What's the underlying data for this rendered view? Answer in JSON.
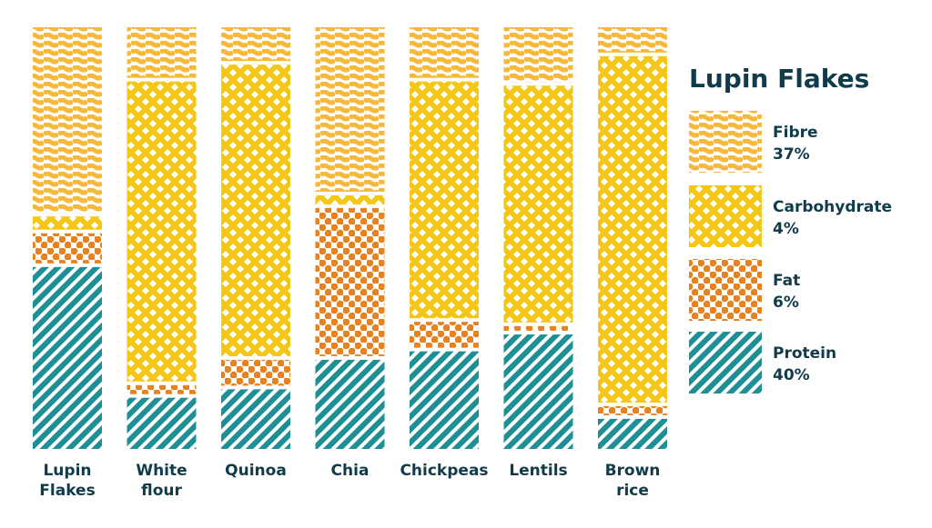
{
  "chart_data": {
    "type": "bar",
    "stacked": true,
    "normalized": true,
    "categories": [
      "Lupin\nFlakes",
      "White\nflour",
      "Quinoa",
      "Chia",
      "Chickpeas",
      "Lentils",
      "Brown\nrice"
    ],
    "series": [
      {
        "name": "Protein",
        "values": [
          44,
          13,
          15,
          22,
          24,
          28,
          8
        ],
        "color": "#1f8f96",
        "pattern": "diagonal-stripes"
      },
      {
        "name": "Fat",
        "values": [
          8,
          3,
          7,
          36,
          7,
          2,
          3
        ],
        "color": "#e8821e",
        "pattern": "dots"
      },
      {
        "name": "Carbohydrate",
        "values": [
          4,
          72,
          70,
          3,
          57,
          57,
          83
        ],
        "color": "#f5c518",
        "pattern": "diamonds"
      },
      {
        "name": "Fibre",
        "values": [
          44,
          12,
          8,
          39,
          12,
          13,
          6
        ],
        "color": "#f5b83a",
        "pattern": "waves"
      }
    ],
    "legend": {
      "title": "Lupin Flakes",
      "placement": "right",
      "items": [
        {
          "name": "Fibre",
          "value": "37%"
        },
        {
          "name": "Carbohydrate",
          "value": "4%"
        },
        {
          "name": "Fat",
          "value": "6%"
        },
        {
          "name": "Protein",
          "value": "40%"
        }
      ]
    },
    "title": "",
    "xlabel": "",
    "ylabel": "",
    "ylim": [
      0,
      100
    ],
    "grid": false
  }
}
